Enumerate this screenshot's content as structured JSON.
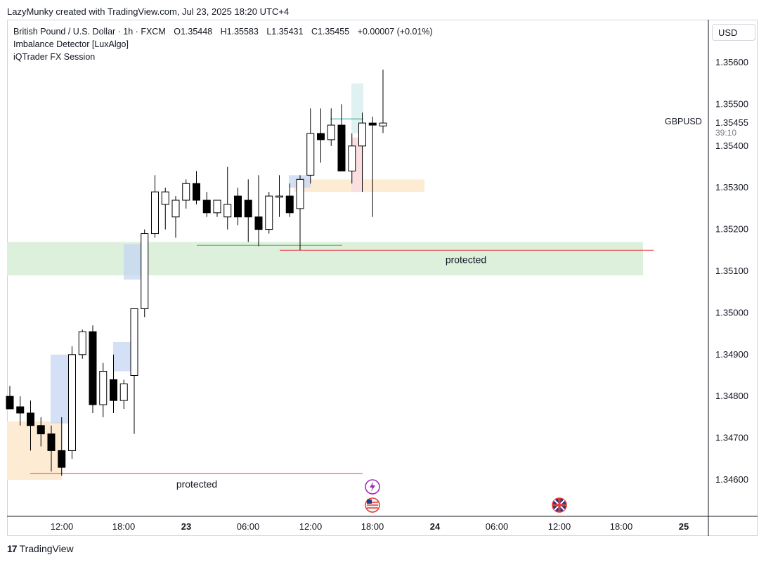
{
  "header": {
    "caption": "LazyMunky created with TradingView.com, Jul 23, 2025 18:20 UTC+4"
  },
  "legend": {
    "symbol": "British Pound / U.S. Dollar · 1h · FXCM",
    "open": "O1.35448",
    "high": "H1.35583",
    "low": "L1.35431",
    "close": "C1.35455",
    "change": "+0.00007 (+0.01%)",
    "indicators": [
      "Imbalance Detector [LuxAlgo]",
      "iQTrader FX Session"
    ]
  },
  "currency_button": "USD",
  "symbol_label": "GBPUSD",
  "last_price": "1.35455",
  "countdown": "39:10",
  "branding": "TradingView",
  "colors": {
    "up_body": "#ffffff",
    "down_body": "#000000",
    "wick": "#000000",
    "imbalance": "#c5d5f2",
    "demand_zone": "#dcf0dc",
    "supply_zone": "#fdebd3",
    "protected_line": "#f23645",
    "price_line": "#26a69a"
  },
  "chart_data": {
    "type": "candlestick",
    "symbol": "GBPUSD",
    "timeframe": "1h",
    "y_axis_ticks": [
      "1.35600",
      "1.35500",
      "1.35400",
      "1.35300",
      "1.35200",
      "1.35100",
      "1.35000",
      "1.34900",
      "1.34800",
      "1.34700",
      "1.34600"
    ],
    "x_axis_ticks": [
      "12:00",
      "18:00",
      "23",
      "06:00",
      "12:00",
      "18:00",
      "24",
      "06:00",
      "12:00",
      "18:00",
      "25"
    ],
    "ylim": [
      1.3456,
      1.3562
    ],
    "candles": [
      {
        "o": 1.348,
        "h": 1.34825,
        "l": 1.3477,
        "c": 1.3477
      },
      {
        "o": 1.34775,
        "h": 1.348,
        "l": 1.3473,
        "c": 1.3476
      },
      {
        "o": 1.3476,
        "h": 1.3479,
        "l": 1.3467,
        "c": 1.3473
      },
      {
        "o": 1.3473,
        "h": 1.3475,
        "l": 1.3468,
        "c": 1.3471
      },
      {
        "o": 1.3471,
        "h": 1.3473,
        "l": 1.3462,
        "c": 1.3467
      },
      {
        "o": 1.3467,
        "h": 1.3475,
        "l": 1.3461,
        "c": 1.3463
      },
      {
        "o": 1.3467,
        "h": 1.3492,
        "l": 1.3465,
        "c": 1.349
      },
      {
        "o": 1.349,
        "h": 1.3496,
        "l": 1.3489,
        "c": 1.34955
      },
      {
        "o": 1.34955,
        "h": 1.3497,
        "l": 1.3476,
        "c": 1.3478
      },
      {
        "o": 1.3478,
        "h": 1.3488,
        "l": 1.3475,
        "c": 1.3486
      },
      {
        "o": 1.3484,
        "h": 1.349,
        "l": 1.3476,
        "c": 1.3479
      },
      {
        "o": 1.3479,
        "h": 1.3484,
        "l": 1.3477,
        "c": 1.3483
      },
      {
        "o": 1.3485,
        "h": 1.3501,
        "l": 1.3471,
        "c": 1.3501
      },
      {
        "o": 1.3501,
        "h": 1.352,
        "l": 1.3499,
        "c": 1.3519
      },
      {
        "o": 1.3519,
        "h": 1.3533,
        "l": 1.3518,
        "c": 1.3529
      },
      {
        "o": 1.3526,
        "h": 1.353,
        "l": 1.352,
        "c": 1.3529
      },
      {
        "o": 1.3523,
        "h": 1.3528,
        "l": 1.3518,
        "c": 1.3527
      },
      {
        "o": 1.3527,
        "h": 1.3532,
        "l": 1.3525,
        "c": 1.3531
      },
      {
        "o": 1.3531,
        "h": 1.3534,
        "l": 1.3526,
        "c": 1.3527
      },
      {
        "o": 1.3527,
        "h": 1.3529,
        "l": 1.3523,
        "c": 1.3524
      },
      {
        "o": 1.3524,
        "h": 1.3527,
        "l": 1.3523,
        "c": 1.3527
      },
      {
        "o": 1.3523,
        "h": 1.3535,
        "l": 1.352,
        "c": 1.3526
      },
      {
        "o": 1.3528,
        "h": 1.353,
        "l": 1.3521,
        "c": 1.3523
      },
      {
        "o": 1.3527,
        "h": 1.3532,
        "l": 1.3517,
        "c": 1.3523
      },
      {
        "o": 1.3523,
        "h": 1.3533,
        "l": 1.3516,
        "c": 1.352
      },
      {
        "o": 1.352,
        "h": 1.3529,
        "l": 1.3519,
        "c": 1.3528
      },
      {
        "o": 1.3528,
        "h": 1.3533,
        "l": 1.3523,
        "c": 1.3528
      },
      {
        "o": 1.3528,
        "h": 1.3531,
        "l": 1.3523,
        "c": 1.3524
      },
      {
        "o": 1.3525,
        "h": 1.3533,
        "l": 1.3515,
        "c": 1.3532
      },
      {
        "o": 1.3533,
        "h": 1.3549,
        "l": 1.3531,
        "c": 1.3543
      },
      {
        "o": 1.3543,
        "h": 1.3549,
        "l": 1.3536,
        "c": 1.35415
      },
      {
        "o": 1.35415,
        "h": 1.3549,
        "l": 1.354,
        "c": 1.3545
      },
      {
        "o": 1.3545,
        "h": 1.355,
        "l": 1.3534,
        "c": 1.3534
      },
      {
        "o": 1.3534,
        "h": 1.3543,
        "l": 1.3531,
        "c": 1.354
      },
      {
        "o": 1.354,
        "h": 1.3548,
        "l": 1.3529,
        "c": 1.35455
      },
      {
        "o": 1.35455,
        "h": 1.3547,
        "l": 1.3523,
        "c": 1.3545
      },
      {
        "o": 1.35448,
        "h": 1.35583,
        "l": 1.35431,
        "c": 1.35455
      }
    ],
    "annotations": [
      {
        "type": "demand_zone",
        "label": "protected",
        "price_top": 1.3517,
        "price_bottom": 1.3509
      },
      {
        "type": "protected_level",
        "label": "protected",
        "price": 1.3515
      },
      {
        "type": "protected_level",
        "label": "protected",
        "price": 1.34615
      }
    ],
    "grid": false
  }
}
